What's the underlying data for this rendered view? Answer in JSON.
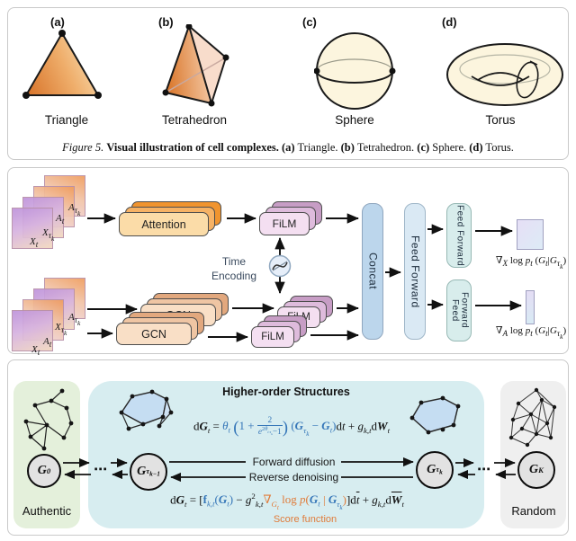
{
  "figure": {
    "panels": {
      "complexes": {
        "tags": [
          "(a)",
          "(b)",
          "(c)",
          "(d)"
        ],
        "labels": [
          "Triangle",
          "Tetrahedron",
          "Sphere",
          "Torus"
        ],
        "caption_html": "<i>Figure 5.</i> <b>Visual illustration of cell complexes.</b> <b>(a)</b> Triangle. <b>(b)</b> Tetrahedron. <b>(c)</b> Sphere. <b>(d)</b> Torus."
      },
      "architecture": {
        "attention": "Attention",
        "gcn": "GCN",
        "film": "FiLM",
        "concat": "Concat",
        "feed_forward": "Feed Forward",
        "time_encoding_html": "Time<br>Encoding",
        "inputs_top_html": [
          "<i>A</i><sub><i>τ</i><sub><i>k</i></sub></sub>",
          "<i>A</i><sub><i>t</i></sub>",
          "<i>X</i><sub><i>τ</i><sub><i>k</i></sub></sub>",
          "<i>X</i><sub><i>t</i></sub>"
        ],
        "inputs_bottom_html": [
          "<i>A</i><sub><i>τ</i><sub><i>k</i></sub></sub>",
          "<i>X</i><sub><i>τ</i><sub><i>k</i></sub></sub>",
          "<i>A</i><sub><i>t</i></sub>",
          "<i>X</i><sub><i>t</i></sub>"
        ],
        "score_x_html": "∇<sub><i>X</i></sub> log <i>p</i><sub><i>t</i></sub> (<i>G</i><sub><i>t</i></sub>|<i>G</i><sub><i>τ</i><sub><i>k</i></sub></sub>)",
        "score_a_html": "∇<sub><i>A</i></sub> log <i>p</i><sub><i>t</i></sub> (<i>G</i><sub><i>t</i></sub>|<i>G</i><sub><i>τ</i><sub><i>k</i></sub></sub>)"
      },
      "diffusion": {
        "title": "Higher-order Structures",
        "forward_sde_html": "d<b><i>G</i></b><sub><i>t</i></sub> = <span class='eb'><i>θ</i><sub><i>t</i></sub> <span class='bp'>(</span>1 + <span class='frac'><span class='fn'>2</span><span class='fd'><i>e</i><sup>2<i>θ</i><sub><i>t</i>:<i>τ</i><sub><i>k</i></sub></sub></sup>−1</span></span><span class='bp'>)</span> (<b><i>G</i></b><sub><i>τ</i><sub><i>k</i></sub></sub> − <b><i>G</i></b><sub><i>t</i></sub>)</span>d<i>t</i> + <i>g</i><sub><i>k</i>,<i>t</i></sub>d<b><i>W</i></b><sub><i>t</i></sub>",
        "reverse_sde_html": "d<b><i>G</i></b><sub><i>t</i></sub> = [<span class='eb'><b>f</b><sub><i>k</i>,<i>t</i></sub>(<b><i>G</i></b><sub><i>t</i></sub>)</span> − <i>g</i><sup>2</sup><sub><i>k</i>,<i>t</i></sub><span class='eo'>∇<sub><i>G</i><sub><i>t</i></sub></sub> log <i>p</i>(</span><span class='eb'><b><i>G</i></b><sub><i>t</i></sub></span><span class='eo'> | </span><span class='eb'><b><i>G</i></b><sub><i>τ</i><sub><i>k</i></sub></sub></span><span class='eo'>)</span>]d<span class='ovl'><i>t</i></span> + <i>g</i><sub><i>k</i>,<i>t</i></sub>d<span class='ovl'><b><i>W</i></b></span><sub><i>t</i></sub>",
        "forward_label": "Forward diffusion",
        "reverse_label": "Reverse denoising",
        "score_function_label": "Score function",
        "g0_html": "<i>G</i><sub>0</sub>",
        "gtk1_html": "<i>G</i><sub><i>τ</i><sub><i>k</i>−1</sub></sub>",
        "gtk_html": "<i>G</i><sub><i>τ</i><sub><i>k</i></sub></sub>",
        "gK_html": "<i>G</i><sub><i>K</i></sub>",
        "dots_left": "⋯",
        "dots_right": "⋯",
        "authentic": "Authentic",
        "random": "Random"
      }
    },
    "colors": {
      "attention_front": "#FBDCA8",
      "attention_back": "#F0942F",
      "film_front": "#F4DFF1",
      "film_back": "#C79DC5",
      "gcn_front": "#F9DFC6",
      "gcn_back": "#E2A87E",
      "concat_fill": "#BCD6EC",
      "feed_forward_fill": "#DAE9F4",
      "feed_forward_small_fill": "#D8EDEC",
      "authentic_box": "#E4F0DB",
      "structures_box": "#D7EDF0",
      "random_box": "#EFEFEF",
      "equation_blue": "#3576B8",
      "equation_orange": "#E07B39",
      "shape_fill_cream": "#FCF5DE",
      "shape_gradient_orange": "#DA7930"
    }
  }
}
